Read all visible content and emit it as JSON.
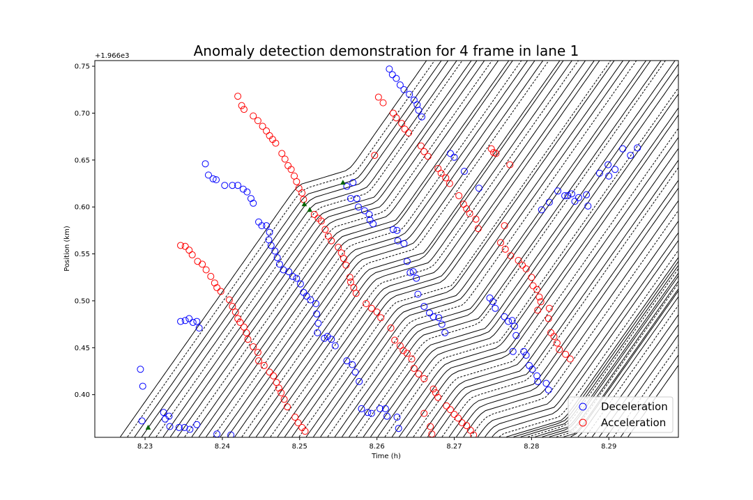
{
  "chart_data": {
    "type": "line",
    "title": "Anomaly detection demonstration for 4 frame in lane 1",
    "xlabel": "Time (h)",
    "ylabel": "Position (km)",
    "y_offset_label": "+1.966e3",
    "xlim": [
      8.2235,
      8.299
    ],
    "ylim": [
      0.3545,
      0.756
    ],
    "x_ticks": [
      8.23,
      8.24,
      8.25,
      8.26,
      8.27,
      8.28,
      8.29
    ],
    "x_tick_labels": [
      "8.23",
      "8.24",
      "8.25",
      "8.26",
      "8.27",
      "8.28",
      "8.29"
    ],
    "y_ticks": [
      0.4,
      0.45,
      0.5,
      0.55,
      0.6,
      0.65,
      0.7,
      0.75
    ],
    "y_tick_labels": [
      "0.40",
      "0.45",
      "0.50",
      "0.55",
      "0.60",
      "0.65",
      "0.70",
      "0.75"
    ],
    "trajectories": {
      "count": 72,
      "start_time_first": 8.2268,
      "start_time_spacing": 0.000925,
      "start_position": 0.355,
      "color": "#000000",
      "dashed_every": 4
    },
    "series": [
      {
        "name": "Deceleration",
        "marker": "circle",
        "color": "#0000ff",
        "points": [
          [
            8.2294,
            0.427
          ],
          [
            8.2297,
            0.409
          ],
          [
            8.2296,
            0.372
          ],
          [
            8.2324,
            0.381
          ],
          [
            8.2326,
            0.374
          ],
          [
            8.2331,
            0.377
          ],
          [
            8.2332,
            0.366
          ],
          [
            8.2344,
            0.365
          ],
          [
            8.2351,
            0.365
          ],
          [
            8.2358,
            0.363
          ],
          [
            8.2367,
            0.368
          ],
          [
            8.2346,
            0.478
          ],
          [
            8.2352,
            0.479
          ],
          [
            8.2357,
            0.481
          ],
          [
            8.2362,
            0.477
          ],
          [
            8.2367,
            0.478
          ],
          [
            8.237,
            0.471
          ],
          [
            8.2378,
            0.646
          ],
          [
            8.2382,
            0.634
          ],
          [
            8.2388,
            0.63
          ],
          [
            8.2392,
            0.629
          ],
          [
            8.2403,
            0.623
          ],
          [
            8.2413,
            0.623
          ],
          [
            8.242,
            0.623
          ],
          [
            8.2427,
            0.619
          ],
          [
            8.2432,
            0.616
          ],
          [
            8.2437,
            0.609
          ],
          [
            8.244,
            0.604
          ],
          [
            8.2447,
            0.584
          ],
          [
            8.2451,
            0.58
          ],
          [
            8.2457,
            0.58
          ],
          [
            8.2461,
            0.573
          ],
          [
            8.246,
            0.565
          ],
          [
            8.2463,
            0.559
          ],
          [
            8.2468,
            0.553
          ],
          [
            8.2471,
            0.546
          ],
          [
            8.2474,
            0.539
          ],
          [
            8.2479,
            0.533
          ],
          [
            8.2486,
            0.531
          ],
          [
            8.2491,
            0.526
          ],
          [
            8.2496,
            0.524
          ],
          [
            8.2501,
            0.518
          ],
          [
            8.2505,
            0.509
          ],
          [
            8.2509,
            0.505
          ],
          [
            8.2514,
            0.501
          ],
          [
            8.2521,
            0.497
          ],
          [
            8.2522,
            0.486
          ],
          [
            8.2524,
            0.476
          ],
          [
            8.2523,
            0.466
          ],
          [
            8.2532,
            0.46
          ],
          [
            8.2536,
            0.462
          ],
          [
            8.2541,
            0.459
          ],
          [
            8.2546,
            0.452
          ],
          [
            8.2561,
            0.622
          ],
          [
            8.2566,
            0.609
          ],
          [
            8.2569,
            0.626
          ],
          [
            8.2574,
            0.609
          ],
          [
            8.2576,
            0.6
          ],
          [
            8.2584,
            0.596
          ],
          [
            8.259,
            0.592
          ],
          [
            8.2591,
            0.586
          ],
          [
            8.2595,
            0.582
          ],
          [
            8.2561,
            0.436
          ],
          [
            8.2568,
            0.432
          ],
          [
            8.2572,
            0.424
          ],
          [
            8.2577,
            0.414
          ],
          [
            8.258,
            0.385
          ],
          [
            8.2588,
            0.381
          ],
          [
            8.2593,
            0.38
          ],
          [
            8.2604,
            0.385
          ],
          [
            8.2611,
            0.385
          ],
          [
            8.2613,
            0.377
          ],
          [
            8.2626,
            0.376
          ],
          [
            8.2628,
            0.364
          ],
          [
            8.2616,
            0.747
          ],
          [
            8.262,
            0.741
          ],
          [
            8.2625,
            0.737
          ],
          [
            8.263,
            0.73
          ],
          [
            8.2635,
            0.725
          ],
          [
            8.2642,
            0.72
          ],
          [
            8.2648,
            0.714
          ],
          [
            8.2652,
            0.709
          ],
          [
            8.2654,
            0.703
          ],
          [
            8.2658,
            0.696
          ],
          [
            8.2621,
            0.576
          ],
          [
            8.2626,
            0.575
          ],
          [
            8.2627,
            0.564
          ],
          [
            8.2635,
            0.561
          ],
          [
            8.2639,
            0.542
          ],
          [
            8.2643,
            0.53
          ],
          [
            8.2647,
            0.531
          ],
          [
            8.2651,
            0.524
          ],
          [
            8.2653,
            0.507
          ],
          [
            8.2661,
            0.494
          ],
          [
            8.2668,
            0.487
          ],
          [
            8.2673,
            0.483
          ],
          [
            8.268,
            0.482
          ],
          [
            8.2684,
            0.475
          ],
          [
            8.2688,
            0.466
          ],
          [
            8.2695,
            0.657
          ],
          [
            8.27,
            0.653
          ],
          [
            8.2713,
            0.638
          ],
          [
            8.2732,
            0.62
          ],
          [
            8.2746,
            0.503
          ],
          [
            8.275,
            0.499
          ],
          [
            8.2753,
            0.492
          ],
          [
            8.2765,
            0.483
          ],
          [
            8.277,
            0.478
          ],
          [
            8.2775,
            0.479
          ],
          [
            8.2778,
            0.473
          ],
          [
            8.278,
            0.463
          ],
          [
            8.2776,
            0.446
          ],
          [
            8.279,
            0.446
          ],
          [
            8.2793,
            0.442
          ],
          [
            8.2797,
            0.431
          ],
          [
            8.2801,
            0.427
          ],
          [
            8.2807,
            0.42
          ],
          [
            8.2808,
            0.414
          ],
          [
            8.2819,
            0.412
          ],
          [
            8.2822,
            0.405
          ],
          [
            8.2813,
            0.597
          ],
          [
            8.2823,
            0.605
          ],
          [
            8.2834,
            0.617
          ],
          [
            8.2843,
            0.612
          ],
          [
            8.2847,
            0.612
          ],
          [
            8.2852,
            0.614
          ],
          [
            8.2856,
            0.606
          ],
          [
            8.2861,
            0.61
          ],
          [
            8.2871,
            0.613
          ],
          [
            8.2873,
            0.601
          ],
          [
            8.2888,
            0.636
          ],
          [
            8.2899,
            0.645
          ],
          [
            8.29,
            0.633
          ],
          [
            8.2908,
            0.64
          ],
          [
            8.2918,
            0.662
          ],
          [
            8.2928,
            0.655
          ],
          [
            8.2937,
            0.663
          ],
          [
            8.2393,
            0.358
          ],
          [
            8.2411,
            0.357
          ]
        ]
      },
      {
        "name": "Acceleration",
        "marker": "circle",
        "color": "#ff0000",
        "points": [
          [
            8.242,
            0.718
          ],
          [
            8.2425,
            0.708
          ],
          [
            8.2428,
            0.704
          ],
          [
            8.244,
            0.697
          ],
          [
            8.2446,
            0.692
          ],
          [
            8.2452,
            0.686
          ],
          [
            8.2457,
            0.681
          ],
          [
            8.2461,
            0.676
          ],
          [
            8.2465,
            0.672
          ],
          [
            8.2469,
            0.668
          ],
          [
            8.2477,
            0.657
          ],
          [
            8.2481,
            0.651
          ],
          [
            8.2485,
            0.644
          ],
          [
            8.2489,
            0.64
          ],
          [
            8.2493,
            0.633
          ],
          [
            8.2496,
            0.627
          ],
          [
            8.2499,
            0.62
          ],
          [
            8.2503,
            0.615
          ],
          [
            8.2505,
            0.608
          ],
          [
            8.2519,
            0.592
          ],
          [
            8.2524,
            0.588
          ],
          [
            8.2528,
            0.585
          ],
          [
            8.2533,
            0.576
          ],
          [
            8.2537,
            0.569
          ],
          [
            8.2541,
            0.564
          ],
          [
            8.255,
            0.557
          ],
          [
            8.2554,
            0.551
          ],
          [
            8.2557,
            0.545
          ],
          [
            8.256,
            0.538
          ],
          [
            8.2565,
            0.525
          ],
          [
            8.2566,
            0.52
          ],
          [
            8.257,
            0.514
          ],
          [
            8.2573,
            0.508
          ],
          [
            8.2586,
            0.497
          ],
          [
            8.2593,
            0.492
          ],
          [
            8.26,
            0.488
          ],
          [
            8.2605,
            0.482
          ],
          [
            8.2618,
            0.471
          ],
          [
            8.2623,
            0.458
          ],
          [
            8.263,
            0.452
          ],
          [
            8.2634,
            0.447
          ],
          [
            8.2639,
            0.444
          ],
          [
            8.2645,
            0.438
          ],
          [
            8.2648,
            0.428
          ],
          [
            8.2654,
            0.422
          ],
          [
            8.2661,
            0.417
          ],
          [
            8.2673,
            0.406
          ],
          [
            8.2676,
            0.402
          ],
          [
            8.2679,
            0.397
          ],
          [
            8.269,
            0.388
          ],
          [
            8.2695,
            0.384
          ],
          [
            8.27,
            0.379
          ],
          [
            8.2705,
            0.375
          ],
          [
            8.271,
            0.37
          ],
          [
            8.2716,
            0.367
          ],
          [
            8.2721,
            0.362
          ],
          [
            8.2725,
            0.357
          ],
          [
            8.2661,
            0.38
          ],
          [
            8.2669,
            0.366
          ],
          [
            8.2671,
            0.358
          ],
          [
            8.2346,
            0.559
          ],
          [
            8.2352,
            0.558
          ],
          [
            8.2357,
            0.554
          ],
          [
            8.2361,
            0.549
          ],
          [
            8.2368,
            0.542
          ],
          [
            8.2374,
            0.539
          ],
          [
            8.2379,
            0.533
          ],
          [
            8.2385,
            0.526
          ],
          [
            8.239,
            0.519
          ],
          [
            8.2393,
            0.514
          ],
          [
            8.2398,
            0.51
          ],
          [
            8.2409,
            0.501
          ],
          [
            8.2413,
            0.494
          ],
          [
            8.2417,
            0.488
          ],
          [
            8.242,
            0.481
          ],
          [
            8.2423,
            0.477
          ],
          [
            8.2428,
            0.472
          ],
          [
            8.2431,
            0.466
          ],
          [
            8.2433,
            0.459
          ],
          [
            8.244,
            0.451
          ],
          [
            8.2446,
            0.445
          ],
          [
            8.2447,
            0.436
          ],
          [
            8.2454,
            0.431
          ],
          [
            8.2461,
            0.424
          ],
          [
            8.2466,
            0.42
          ],
          [
            8.247,
            0.413
          ],
          [
            8.2473,
            0.407
          ],
          [
            8.2476,
            0.402
          ],
          [
            8.248,
            0.395
          ],
          [
            8.2484,
            0.387
          ],
          [
            8.2494,
            0.376
          ],
          [
            8.2498,
            0.37
          ],
          [
            8.2503,
            0.365
          ],
          [
            8.2507,
            0.361
          ],
          [
            8.2597,
            0.655
          ],
          [
            8.2602,
            0.717
          ],
          [
            8.2608,
            0.711
          ],
          [
            8.2621,
            0.7
          ],
          [
            8.2625,
            0.695
          ],
          [
            8.2632,
            0.689
          ],
          [
            8.2636,
            0.683
          ],
          [
            8.2641,
            0.679
          ],
          [
            8.2657,
            0.665
          ],
          [
            8.2661,
            0.659
          ],
          [
            8.2666,
            0.654
          ],
          [
            8.2679,
            0.641
          ],
          [
            8.2683,
            0.636
          ],
          [
            8.2689,
            0.631
          ],
          [
            8.2694,
            0.625
          ],
          [
            8.2706,
            0.612
          ],
          [
            8.2712,
            0.603
          ],
          [
            8.2716,
            0.598
          ],
          [
            8.272,
            0.593
          ],
          [
            8.2728,
            0.587
          ],
          [
            8.2731,
            0.577
          ],
          [
            8.2748,
            0.662
          ],
          [
            8.2751,
            0.658
          ],
          [
            8.2754,
            0.657
          ],
          [
            8.2772,
            0.645
          ],
          [
            8.2765,
            0.58
          ],
          [
            8.276,
            0.562
          ],
          [
            8.2766,
            0.555
          ],
          [
            8.2773,
            0.548
          ],
          [
            8.2783,
            0.543
          ],
          [
            8.2788,
            0.538
          ],
          [
            8.2793,
            0.534
          ],
          [
            8.28,
            0.525
          ],
          [
            8.2802,
            0.516
          ],
          [
            8.2807,
            0.512
          ],
          [
            8.281,
            0.504
          ],
          [
            8.2812,
            0.499
          ],
          [
            8.2808,
            0.49
          ],
          [
            8.2823,
            0.492
          ],
          [
            8.2822,
            0.481
          ],
          [
            8.2825,
            0.466
          ],
          [
            8.2829,
            0.462
          ],
          [
            8.2833,
            0.455
          ],
          [
            8.2836,
            0.448
          ],
          [
            8.2844,
            0.443
          ],
          [
            8.285,
            0.438
          ]
        ]
      },
      {
        "name": "",
        "marker": "triangle",
        "color": "#006400",
        "points": [
          [
            8.2304,
            0.365
          ],
          [
            8.2506,
            0.603
          ],
          [
            8.2513,
            0.597
          ],
          [
            8.2556,
            0.626
          ]
        ]
      }
    ],
    "legend": {
      "position": "lower-right",
      "entries": [
        "Deceleration",
        "Acceleration"
      ]
    }
  }
}
